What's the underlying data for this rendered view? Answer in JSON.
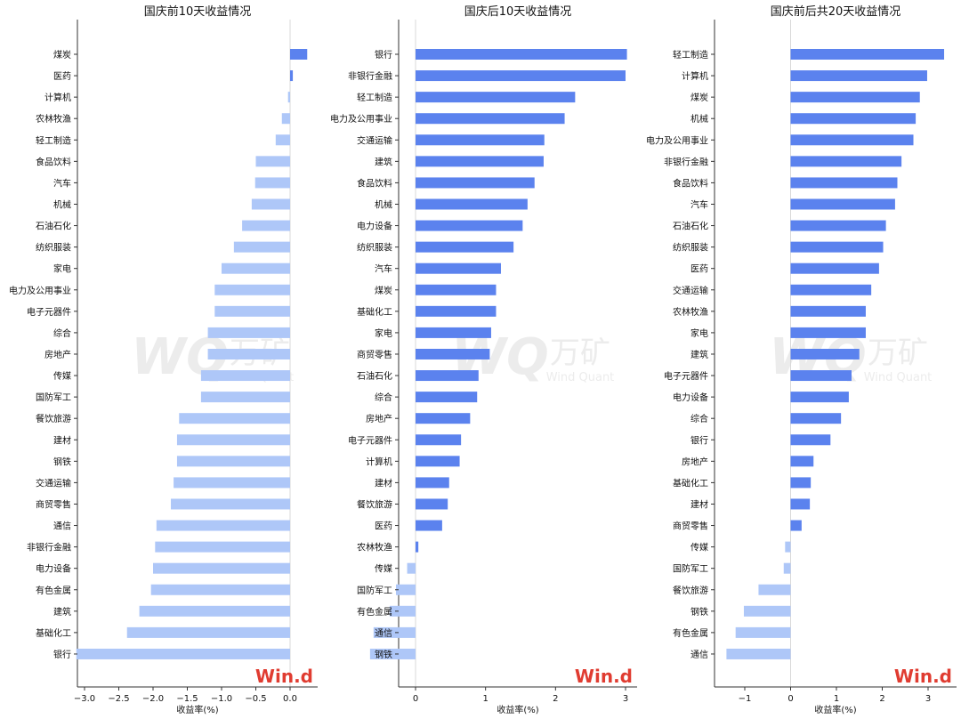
{
  "watermark": {
    "brand_cn": "万矿",
    "brand_en": "Wind Quant",
    "logo": "Win.d"
  },
  "colors": {
    "negative_bar": "#aec7f8",
    "positive_bar": "#5b82ee",
    "zero_line": "#d9d9d9",
    "logo_red": "#e03c31",
    "watermark": "#ececec"
  },
  "chart_data": [
    {
      "type": "bar",
      "orientation": "horizontal",
      "title": "国庆前10天收益情况",
      "xlabel": "收益率(%)",
      "xlim": [
        -3.3,
        0.4
      ],
      "xticks": [
        -3.0,
        -2.5,
        -2.0,
        -1.5,
        -1.0,
        -0.5,
        0.0
      ],
      "xtick_labels": [
        "−3.0",
        "−2.5",
        "−2.0",
        "−1.5",
        "−1.0",
        "−0.5",
        "0.0"
      ],
      "categories": [
        "煤炭",
        "医药",
        "计算机",
        "农林牧渔",
        "轻工制造",
        "食品饮料",
        "汽车",
        "机械",
        "石油石化",
        "纺织服装",
        "家电",
        "电力及公用事业",
        "电子元器件",
        "综合",
        "房地产",
        "传媒",
        "国防军工",
        "餐饮旅游",
        "建材",
        "钢铁",
        "交通运输",
        "商贸零售",
        "通信",
        "非银行金融",
        "电力设备",
        "有色金属",
        "建筑",
        "基础化工",
        "银行"
      ],
      "values": [
        0.25,
        0.04,
        -0.03,
        -0.12,
        -0.21,
        -0.5,
        -0.51,
        -0.56,
        -0.7,
        -0.82,
        -1.0,
        -1.1,
        -1.1,
        -1.2,
        -1.2,
        -1.3,
        -1.3,
        -1.62,
        -1.65,
        -1.65,
        -1.7,
        -1.74,
        -1.95,
        -1.97,
        -2.0,
        -2.03,
        -2.2,
        -2.38,
        -3.12
      ]
    },
    {
      "type": "bar",
      "orientation": "horizontal",
      "title": "国庆后10天收益情况",
      "xlabel": "收益率(%)",
      "xlim": [
        -0.75,
        3.2
      ],
      "xticks": [
        0,
        1,
        2,
        3
      ],
      "xtick_labels": [
        "0",
        "1",
        "2",
        "3"
      ],
      "categories": [
        "银行",
        "非银行金融",
        "轻工制造",
        "电力及公用事业",
        "交通运输",
        "建筑",
        "食品饮料",
        "机械",
        "电力设备",
        "纺织服装",
        "汽车",
        "煤炭",
        "基础化工",
        "家电",
        "商贸零售",
        "石油石化",
        "综合",
        "房地产",
        "电子元器件",
        "计算机",
        "建材",
        "餐饮旅游",
        "医药",
        "农林牧渔",
        "传媒",
        "国防军工",
        "有色金属",
        "通信",
        "钢铁"
      ],
      "values": [
        3.02,
        3.0,
        2.28,
        2.13,
        1.84,
        1.83,
        1.7,
        1.6,
        1.53,
        1.4,
        1.22,
        1.15,
        1.15,
        1.08,
        1.06,
        0.9,
        0.88,
        0.78,
        0.65,
        0.63,
        0.48,
        0.46,
        0.38,
        0.04,
        -0.12,
        -0.28,
        -0.37,
        -0.6,
        -0.65
      ]
    },
    {
      "type": "bar",
      "orientation": "horizontal",
      "title": "国庆前后共20天收益情况",
      "xlabel": "收益率(%)",
      "xlim": [
        -1.65,
        3.55
      ],
      "xticks": [
        -1,
        0,
        1,
        2,
        3
      ],
      "xtick_labels": [
        "−1",
        "0",
        "1",
        "2",
        "3"
      ],
      "categories": [
        "轻工制造",
        "计算机",
        "煤炭",
        "机械",
        "电力及公用事业",
        "非银行金融",
        "食品饮料",
        "汽车",
        "石油石化",
        "纺织服装",
        "医药",
        "交通运输",
        "农林牧渔",
        "家电",
        "建筑",
        "电子元器件",
        "电力设备",
        "综合",
        "银行",
        "房地产",
        "基础化工",
        "建材",
        "商贸零售",
        "传媒",
        "国防军工",
        "餐饮旅游",
        "钢铁",
        "有色金属",
        "通信"
      ],
      "values": [
        3.35,
        2.98,
        2.82,
        2.73,
        2.68,
        2.42,
        2.33,
        2.28,
        2.08,
        2.02,
        1.93,
        1.76,
        1.64,
        1.64,
        1.5,
        1.33,
        1.27,
        1.1,
        0.87,
        0.5,
        0.44,
        0.42,
        0.24,
        -0.12,
        -0.15,
        -0.7,
        -1.02,
        -1.2,
        -1.4
      ]
    }
  ]
}
